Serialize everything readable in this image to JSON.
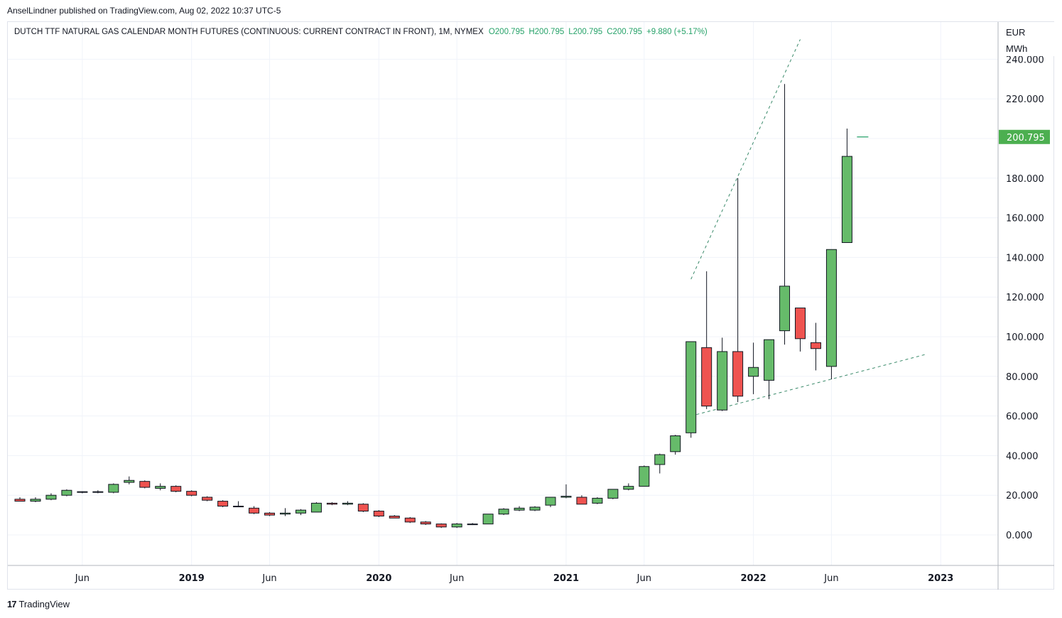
{
  "attribution": "AnselLindner published on TradingView.com, Aug 02, 2022 10:37 UTC-5",
  "legend": {
    "title": "DUTCH TTF NATURAL GAS CALENDAR MONTH FUTURES (CONTINUOUS: CURRENT CONTRACT IN FRONT), 1M, NYMEX",
    "open": "O200.795",
    "high": "H200.795",
    "low": "L200.795",
    "close": "C200.795",
    "change": "+9.880 (+5.17%)"
  },
  "unit_top": "EUR",
  "unit_bottom": "MWh",
  "footer_brand": "TradingView",
  "colors": {
    "up": "#66bb6a",
    "down": "#ef5350",
    "wick": "#131722",
    "trend": "#3a8a6a",
    "grid": "#f0f3fa",
    "last_price_bg": "#4caf50"
  },
  "chart_data": {
    "type": "candlestick",
    "ylim": [
      -15,
      240
    ],
    "y_ticks": [
      "240.000",
      "220.000",
      "180.000",
      "160.000",
      "140.000",
      "120.000",
      "100.000",
      "80.000",
      "60.000",
      "40.000",
      "20.000",
      "0.000"
    ],
    "y_tick_values": [
      240,
      220,
      180,
      160,
      140,
      120,
      100,
      80,
      60,
      40,
      20,
      0
    ],
    "last_price": 200.795,
    "last_price_label": "200.795",
    "x_ticks": [
      {
        "label": "Jun",
        "month": "2018-06",
        "bold": false
      },
      {
        "label": "2019",
        "month": "2019-01",
        "bold": true
      },
      {
        "label": "Jun",
        "month": "2019-06",
        "bold": false
      },
      {
        "label": "2020",
        "month": "2020-01",
        "bold": true
      },
      {
        "label": "Jun",
        "month": "2020-06",
        "bold": false
      },
      {
        "label": "2021",
        "month": "2021-01",
        "bold": true
      },
      {
        "label": "Jun",
        "month": "2021-06",
        "bold": false
      },
      {
        "label": "2022",
        "month": "2022-01",
        "bold": true
      },
      {
        "label": "Jun",
        "month": "2022-06",
        "bold": false
      },
      {
        "label": "2023",
        "month": "2023-01",
        "bold": true
      }
    ],
    "candles": [
      {
        "t": "2018-02",
        "o": 18,
        "h": 19,
        "l": 17,
        "c": 17
      },
      {
        "t": "2018-03",
        "o": 17,
        "h": 19,
        "l": 16.5,
        "c": 18
      },
      {
        "t": "2018-04",
        "o": 18,
        "h": 21,
        "l": 17.5,
        "c": 20
      },
      {
        "t": "2018-05",
        "o": 20,
        "h": 23,
        "l": 19.5,
        "c": 22.5
      },
      {
        "t": "2018-06",
        "o": 21.5,
        "h": 22,
        "l": 21,
        "c": 21.8
      },
      {
        "t": "2018-07",
        "o": 21.8,
        "h": 22.5,
        "l": 21,
        "c": 21.5
      },
      {
        "t": "2018-08",
        "o": 21.5,
        "h": 26,
        "l": 21,
        "c": 25.5
      },
      {
        "t": "2018-09",
        "o": 26.5,
        "h": 29.5,
        "l": 25.5,
        "c": 27.5
      },
      {
        "t": "2018-10",
        "o": 27,
        "h": 27.5,
        "l": 23.5,
        "c": 24
      },
      {
        "t": "2018-11",
        "o": 23.5,
        "h": 26,
        "l": 22.5,
        "c": 24.5
      },
      {
        "t": "2018-12",
        "o": 24.5,
        "h": 25,
        "l": 21.5,
        "c": 22
      },
      {
        "t": "2019-01",
        "o": 22,
        "h": 22.5,
        "l": 19.5,
        "c": 20
      },
      {
        "t": "2019-02",
        "o": 19,
        "h": 19.5,
        "l": 17,
        "c": 17.5
      },
      {
        "t": "2019-03",
        "o": 17,
        "h": 17.5,
        "l": 14,
        "c": 14.5
      },
      {
        "t": "2019-04",
        "o": 14.5,
        "h": 17,
        "l": 14,
        "c": 14.5
      },
      {
        "t": "2019-05",
        "o": 13.5,
        "h": 14.5,
        "l": 10.5,
        "c": 11
      },
      {
        "t": "2019-06",
        "o": 11,
        "h": 11.5,
        "l": 9.5,
        "c": 10
      },
      {
        "t": "2019-07",
        "o": 10.5,
        "h": 13.5,
        "l": 9.5,
        "c": 11
      },
      {
        "t": "2019-08",
        "o": 11,
        "h": 13,
        "l": 10,
        "c": 12.5
      },
      {
        "t": "2019-09",
        "o": 11.5,
        "h": 16.5,
        "l": 11.5,
        "c": 16
      },
      {
        "t": "2019-10",
        "o": 16,
        "h": 16.5,
        "l": 15,
        "c": 15.5
      },
      {
        "t": "2019-11",
        "o": 15.5,
        "h": 17,
        "l": 15,
        "c": 16
      },
      {
        "t": "2019-12",
        "o": 15.5,
        "h": 16,
        "l": 11.5,
        "c": 12
      },
      {
        "t": "2020-01",
        "o": 12,
        "h": 12.5,
        "l": 9,
        "c": 9.5
      },
      {
        "t": "2020-02",
        "o": 9.5,
        "h": 10,
        "l": 8.5,
        "c": 8.5
      },
      {
        "t": "2020-03",
        "o": 8.5,
        "h": 9,
        "l": 6,
        "c": 6.5
      },
      {
        "t": "2020-04",
        "o": 6.5,
        "h": 7,
        "l": 5,
        "c": 5.5
      },
      {
        "t": "2020-05",
        "o": 5.5,
        "h": 5.8,
        "l": 3.5,
        "c": 4
      },
      {
        "t": "2020-06",
        "o": 4,
        "h": 6,
        "l": 3.5,
        "c": 5.5
      },
      {
        "t": "2020-07",
        "o": 5.5,
        "h": 6,
        "l": 5,
        "c": 5.5
      },
      {
        "t": "2020-08",
        "o": 5.5,
        "h": 10.5,
        "l": 5.5,
        "c": 10.5
      },
      {
        "t": "2020-09",
        "o": 10.5,
        "h": 13.5,
        "l": 10,
        "c": 13
      },
      {
        "t": "2020-10",
        "o": 12.5,
        "h": 14.5,
        "l": 12,
        "c": 13.5
      },
      {
        "t": "2020-11",
        "o": 12.5,
        "h": 14.5,
        "l": 12,
        "c": 14
      },
      {
        "t": "2020-12",
        "o": 15,
        "h": 19,
        "l": 14,
        "c": 19
      },
      {
        "t": "2021-01",
        "o": 19,
        "h": 25.5,
        "l": 18.5,
        "c": 19.5
      },
      {
        "t": "2021-02",
        "o": 19,
        "h": 20,
        "l": 15.5,
        "c": 15.5
      },
      {
        "t": "2021-03",
        "o": 16,
        "h": 19,
        "l": 15.5,
        "c": 18.5
      },
      {
        "t": "2021-04",
        "o": 18.5,
        "h": 23,
        "l": 18,
        "c": 23
      },
      {
        "t": "2021-05",
        "o": 23,
        "h": 26,
        "l": 22.5,
        "c": 24.5
      },
      {
        "t": "2021-06",
        "o": 24.5,
        "h": 35,
        "l": 24.5,
        "c": 34.5
      },
      {
        "t": "2021-07",
        "o": 35.5,
        "h": 41,
        "l": 31,
        "c": 40.5
      },
      {
        "t": "2021-08",
        "o": 42,
        "h": 50.5,
        "l": 40.5,
        "c": 50
      },
      {
        "t": "2021-09",
        "o": 51.5,
        "h": 97.5,
        "l": 49,
        "c": 97.5
      },
      {
        "t": "2021-10",
        "o": 94.5,
        "h": 133,
        "l": 63.5,
        "c": 65
      },
      {
        "t": "2021-11",
        "o": 63,
        "h": 99.5,
        "l": 62.5,
        "c": 92.5
      },
      {
        "t": "2021-12",
        "o": 92.5,
        "h": 180,
        "l": 67,
        "c": 70
      },
      {
        "t": "2022-01",
        "o": 80,
        "h": 97,
        "l": 71,
        "c": 84.5
      },
      {
        "t": "2022-02",
        "o": 78,
        "h": 98.5,
        "l": 68.5,
        "c": 98.5
      },
      {
        "t": "2022-03",
        "o": 103,
        "h": 227.5,
        "l": 96,
        "c": 125.5
      },
      {
        "t": "2022-04",
        "o": 114.5,
        "h": 114.5,
        "l": 92.5,
        "c": 99
      },
      {
        "t": "2022-05",
        "o": 97,
        "h": 107,
        "l": 83,
        "c": 94
      },
      {
        "t": "2022-06",
        "o": 85,
        "h": 144,
        "l": 78.5,
        "c": 144
      },
      {
        "t": "2022-07",
        "o": 147.5,
        "h": 205,
        "l": 147.5,
        "c": 191
      },
      {
        "t": "2022-08",
        "o": 200.795,
        "h": 200.795,
        "l": 200.795,
        "c": 200.795
      }
    ],
    "trendlines": [
      {
        "from": {
          "t": "2021-09",
          "v": 129
        },
        "to": {
          "t": "2022-04",
          "v": 250
        }
      },
      {
        "from": {
          "t": "2021-09",
          "v": 60
        },
        "to": {
          "t": "2022-12",
          "v": 91
        }
      }
    ]
  }
}
